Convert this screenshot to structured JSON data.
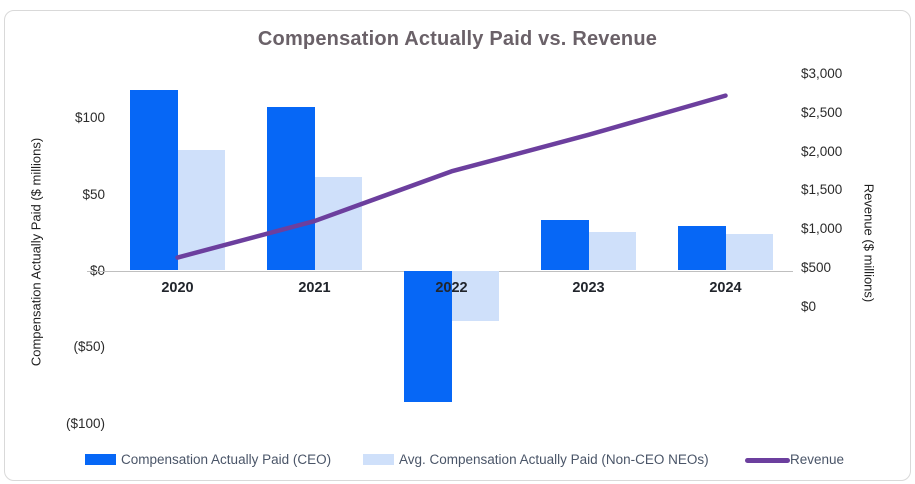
{
  "chart_data": {
    "type": "combo",
    "title": "Compensation Actually Paid vs. Revenue",
    "categories": [
      "2020",
      "2021",
      "2022",
      "2023",
      "2024"
    ],
    "series": [
      {
        "name": "Compensation Actually Paid (CEO)",
        "chart_type": "bar",
        "axis": "left",
        "color": "#0667f6",
        "values": [
          118,
          107,
          -86,
          33,
          29
        ]
      },
      {
        "name": "Avg. Compensation Actually Paid (Non-CEO NEOs)",
        "chart_type": "bar",
        "axis": "left",
        "color": "#cfe0fa",
        "values": [
          79,
          61,
          -33,
          25,
          24
        ]
      },
      {
        "name": "Revenue",
        "chart_type": "line",
        "axis": "right",
        "color": "#6c3f9e",
        "values": [
          630,
          1100,
          1740,
          2210,
          2715
        ]
      }
    ],
    "left_axis": {
      "label": "Compensation Actually Paid ($ millions)",
      "tick_labels": [
        "$100",
        "$50",
        "$0",
        "($50)",
        "($100)"
      ],
      "tick_values": [
        100,
        50,
        0,
        -50,
        -100
      ],
      "range": [
        -100,
        100
      ]
    },
    "right_axis": {
      "label": "Revenue ($ millions)",
      "tick_labels": [
        "$3,000",
        "$2,500",
        "$2,000",
        "$1,500",
        "$1,000",
        "$500",
        "$0"
      ],
      "tick_values": [
        3000,
        2500,
        2000,
        1500,
        1000,
        500,
        0
      ],
      "range": [
        0,
        3000
      ]
    },
    "legend_position": "bottom",
    "gridlines": false,
    "colors": {
      "ceo_bar": "#0667f6",
      "neo_bar": "#cfe0fa",
      "revenue_line": "#6c3f9e",
      "title_text": "#6a6168",
      "legend_text": "#4a5568",
      "axis_text": "#2b2b2b",
      "axis_line": "#bfbfbf"
    }
  }
}
